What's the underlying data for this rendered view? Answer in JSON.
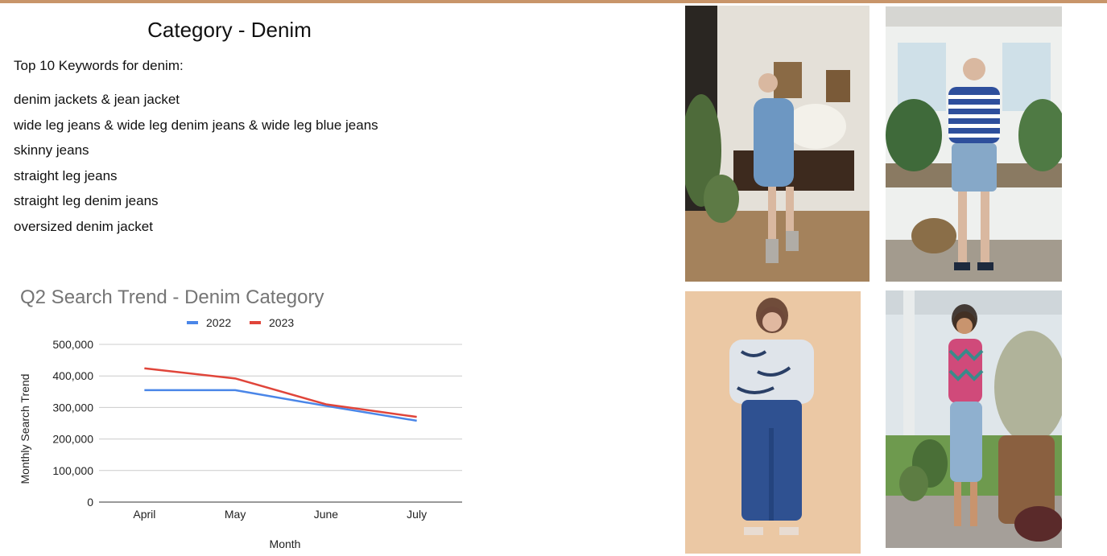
{
  "page": {
    "title": "Category - Denim",
    "accent_color": "#c8956a"
  },
  "keywords": {
    "heading": "Top 10 Keywords for denim:",
    "items": [
      "denim jackets & jean jacket",
      "wide leg jeans & wide leg denim jeans & wide leg blue jeans",
      "skinny jeans",
      "straight leg jeans",
      "straight leg denim jeans",
      "oversized denim jacket"
    ]
  },
  "chart_data": {
    "type": "line",
    "title": "Q2 Search Trend - Denim Category",
    "xlabel": "Month",
    "ylabel": "Monthly Search Trend",
    "categories": [
      "April",
      "May",
      "June",
      "July"
    ],
    "ylim": [
      0,
      500000
    ],
    "yticks": [
      "0",
      "100,000",
      "200,000",
      "300,000",
      "400,000",
      "500,000"
    ],
    "yticks_values": [
      0,
      100000,
      200000,
      300000,
      400000,
      500000
    ],
    "grid": true,
    "legend_position": "top",
    "series": [
      {
        "name": "2022",
        "color": "#4a86e8",
        "values": [
          355000,
          355000,
          305000,
          258000
        ]
      },
      {
        "name": "2023",
        "color": "#e0453a",
        "values": [
          424000,
          392000,
          310000,
          270000
        ]
      }
    ]
  },
  "photos": [
    {
      "name": "photo-woman-denim-dress-with-flowers",
      "icon": "photo-icon"
    },
    {
      "name": "photo-woman-striped-top-denim-shorts",
      "icon": "photo-icon"
    },
    {
      "name": "photo-woman-print-blouse-wide-leg-jeans",
      "icon": "photo-icon"
    },
    {
      "name": "photo-woman-tank-top-cropped-jeans",
      "icon": "photo-icon"
    }
  ]
}
